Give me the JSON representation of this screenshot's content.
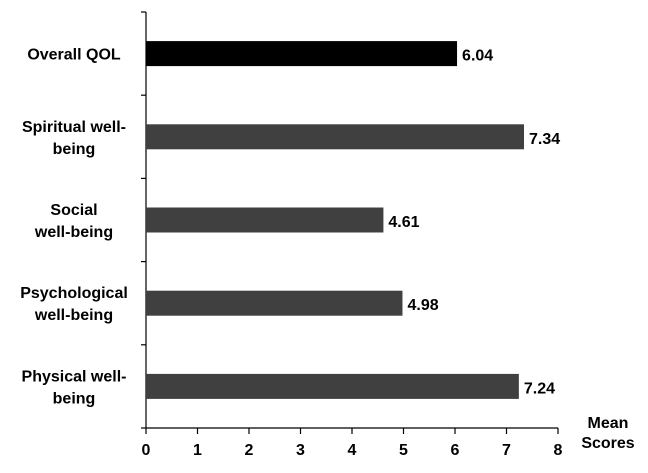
{
  "chart_data": {
    "type": "bar",
    "orientation": "horizontal",
    "categories": [
      "Overall QOL",
      "Spiritual well-being",
      "Social well-being",
      "Psychological well-being",
      "Physical well-being"
    ],
    "category_lines": [
      [
        "Overall QOL"
      ],
      [
        "Spiritual well-",
        "being"
      ],
      [
        "Social",
        "well-being"
      ],
      [
        "Psychological",
        "well-being"
      ],
      [
        "Physical well-",
        "being"
      ]
    ],
    "values": [
      6.04,
      7.34,
      4.61,
      4.98,
      7.24
    ],
    "value_labels": [
      "6.04",
      "7.34",
      "4.61",
      "4.98",
      "7.24"
    ],
    "bar_colors": [
      "#000000",
      "#404040",
      "#404040",
      "#404040",
      "#404040"
    ],
    "xlabel_lines": [
      "Mean",
      "Scores"
    ],
    "xlim": [
      0,
      8
    ],
    "xticks": [
      "0",
      "1",
      "2",
      "3",
      "4",
      "5",
      "6",
      "7",
      "8"
    ],
    "grid": false,
    "legend": "none"
  }
}
